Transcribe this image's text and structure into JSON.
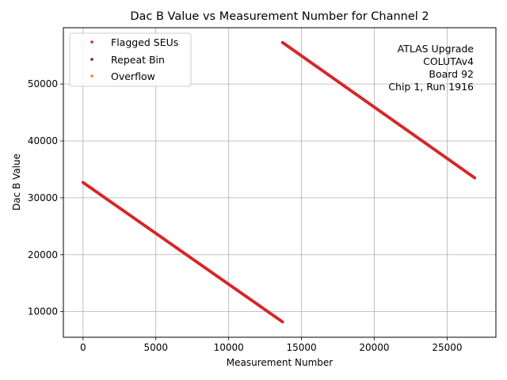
{
  "chart_data": {
    "type": "scatter",
    "title": "Dac B Value vs Measurement Number for Channel 2",
    "xlabel": "Measurement Number",
    "ylabel": "Dac B Value",
    "xlim": [
      -1350,
      28350
    ],
    "ylim": [
      5500,
      59900
    ],
    "xticks": [
      0,
      5000,
      10000,
      15000,
      20000,
      25000
    ],
    "yticks": [
      10000,
      20000,
      30000,
      40000,
      50000
    ],
    "grid": true,
    "legend_position": "upper left",
    "annotation": [
      "ATLAS Upgrade",
      "COLUTAv4",
      "Board 92",
      "Chip 1, Run 1916"
    ],
    "series": [
      {
        "name": "Flagged SEUs",
        "color": "#d62728",
        "segments": [
          {
            "x_start": 0,
            "x_end": 13700,
            "y_start": 32700,
            "y_end": 8200
          },
          {
            "x_start": 13700,
            "x_end": 26900,
            "y_start": 57300,
            "y_end": 33500
          }
        ]
      },
      {
        "name": "Repeat Bin",
        "color": "#7b0f5c",
        "segments": []
      },
      {
        "name": "Overflow",
        "color": "#ff7f0e",
        "segments": []
      }
    ]
  }
}
